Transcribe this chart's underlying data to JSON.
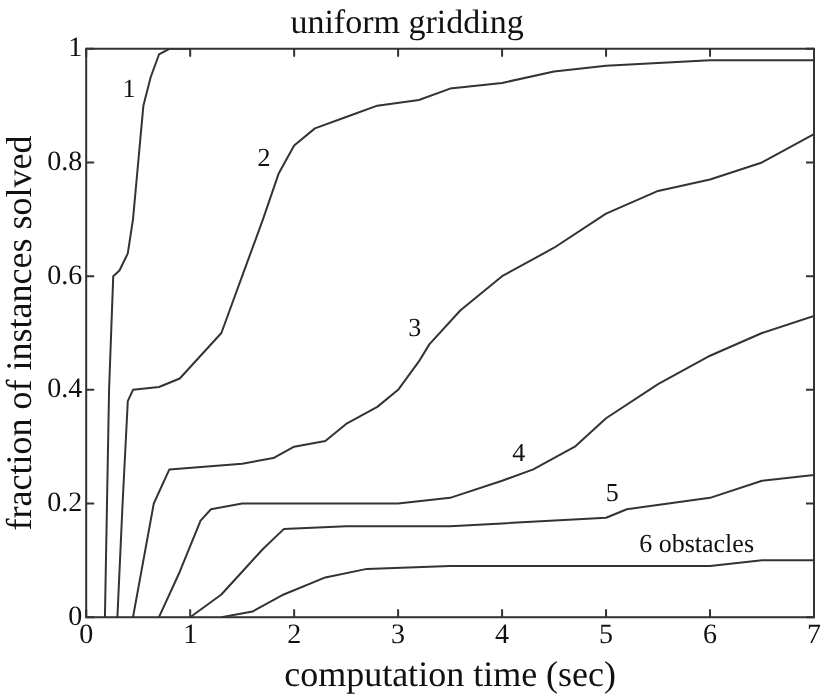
{
  "chart_data": {
    "type": "line",
    "title": "uniform gridding",
    "xlabel": "computation time (sec)",
    "ylabel": "fraction of instances solved",
    "xlim": [
      0,
      7
    ],
    "xticks": [
      0,
      1,
      2,
      3,
      4,
      5,
      6,
      7
    ],
    "ylim": [
      0,
      1
    ],
    "yticks": [
      0,
      0.2,
      0.4,
      0.6,
      0.8,
      1
    ],
    "grid": false,
    "legend": false,
    "marker": "none",
    "line_style": "solid",
    "series": [
      {
        "color": "#333333",
        "x": [
          0.18,
          0.22,
          0.26,
          0.32,
          0.4,
          0.45,
          0.5,
          0.55,
          0.62,
          0.7,
          0.8,
          1.0
        ],
        "values": [
          0,
          0.4,
          0.6,
          0.61,
          0.64,
          0.7,
          0.8,
          0.9,
          0.95,
          0.99,
          1,
          1
        ]
      },
      {
        "color": "#333333",
        "x": [
          0.3,
          0.35,
          0.4,
          0.45,
          0.7,
          0.9,
          1.1,
          1.3,
          1.5,
          1.7,
          1.85,
          2.0,
          2.2,
          2.5,
          2.8,
          3.2,
          3.5,
          4.0,
          4.5,
          5.0,
          6.0,
          7.0
        ],
        "values": [
          0,
          0.2,
          0.38,
          0.4,
          0.405,
          0.42,
          0.46,
          0.5,
          0.6,
          0.7,
          0.78,
          0.83,
          0.86,
          0.88,
          0.9,
          0.91,
          0.93,
          0.94,
          0.96,
          0.97,
          0.98,
          0.98
        ]
      },
      {
        "color": "#333333",
        "x": [
          0.45,
          0.55,
          0.65,
          0.8,
          1.5,
          1.8,
          2.0,
          2.3,
          2.5,
          2.8,
          3.0,
          3.2,
          3.3,
          3.6,
          4.0,
          4.5,
          5.0,
          5.5,
          6.0,
          6.5,
          7.0
        ],
        "values": [
          0,
          0.1,
          0.2,
          0.26,
          0.27,
          0.28,
          0.3,
          0.31,
          0.34,
          0.37,
          0.4,
          0.45,
          0.48,
          0.54,
          0.6,
          0.65,
          0.71,
          0.75,
          0.77,
          0.8,
          0.85
        ]
      },
      {
        "color": "#333333",
        "x": [
          0.7,
          0.9,
          1.1,
          1.2,
          1.5,
          2.0,
          3.0,
          3.5,
          4.0,
          4.3,
          4.7,
          5.0,
          5.5,
          6.0,
          6.5,
          7.0
        ],
        "values": [
          0,
          0.08,
          0.17,
          0.19,
          0.2,
          0.2,
          0.2,
          0.21,
          0.24,
          0.26,
          0.3,
          0.35,
          0.41,
          0.46,
          0.5,
          0.53
        ]
      },
      {
        "color": "#333333",
        "x": [
          1.0,
          1.3,
          1.5,
          1.7,
          1.9,
          2.5,
          3.5,
          4.0,
          5.0,
          5.2,
          5.6,
          6.0,
          6.5,
          7.0
        ],
        "values": [
          0,
          0.04,
          0.08,
          0.12,
          0.155,
          0.16,
          0.16,
          0.165,
          0.175,
          0.19,
          0.2,
          0.21,
          0.24,
          0.25
        ]
      },
      {
        "color": "#333333",
        "x": [
          1.3,
          1.6,
          1.9,
          2.3,
          2.7,
          3.5,
          6.0,
          6.5,
          7.0
        ],
        "values": [
          0,
          0.01,
          0.04,
          0.07,
          0.085,
          0.09,
          0.09,
          0.1,
          0.1
        ]
      }
    ],
    "annotations": [
      {
        "text": "1",
        "x": 0.55,
        "y": 0.9
      },
      {
        "text": "2",
        "x": 1.85,
        "y": 0.78
      },
      {
        "text": "3",
        "x": 3.3,
        "y": 0.48
      },
      {
        "text": "4",
        "x": 4.3,
        "y": 0.26
      },
      {
        "text": "5",
        "x": 5.2,
        "y": 0.19
      },
      {
        "text": "6 obstacles",
        "x": 6.5,
        "y": 0.1
      }
    ]
  }
}
